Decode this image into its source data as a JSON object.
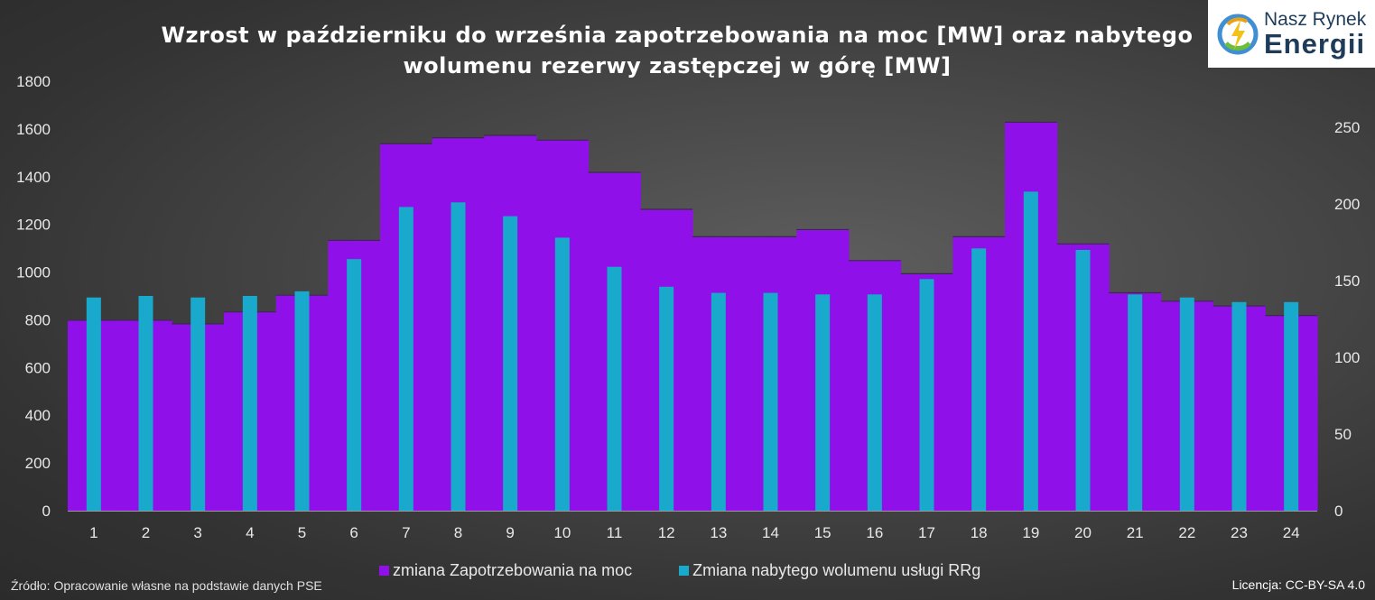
{
  "title_line1": "Wzrost w październiku do września zapotrzebowania na moc [MW] oraz nabytego",
  "title_line2": "wolumenu rezerwy zastępczej w górę [MW]",
  "logo": {
    "line1": "Nasz Rynek",
    "line2": "Energii"
  },
  "source": "Źródło: Opracowanie własne na podstawie danych PSE",
  "license": "Licencja: CC-BY-SA 4.0",
  "chart_data": {
    "type": "bar",
    "title": "Wzrost w październiku do września zapotrzebowania na moc [MW] oraz nabytego wolumenu rezerwy zastępczej w górę [MW]",
    "categories": [
      "1",
      "2",
      "3",
      "4",
      "5",
      "6",
      "7",
      "8",
      "9",
      "10",
      "11",
      "12",
      "13",
      "14",
      "15",
      "16",
      "17",
      "18",
      "19",
      "20",
      "21",
      "22",
      "23",
      "24"
    ],
    "y_left_ticks": [
      "0",
      "200",
      "400",
      "600",
      "800",
      "1000",
      "1200",
      "1400",
      "1600",
      "1800"
    ],
    "y_right_ticks": [
      "0",
      "50",
      "100",
      "150",
      "200",
      "250"
    ],
    "ylim_left": [
      0,
      1800
    ],
    "ylim_right": [
      0,
      280
    ],
    "legend_position": "bottom",
    "grid": false,
    "series": [
      {
        "name": "zmiana Zapotrzebowania na moc",
        "axis": "left",
        "color": "#8f10e8",
        "values": [
          800,
          800,
          785,
          835,
          905,
          1135,
          1540,
          1565,
          1575,
          1555,
          1420,
          1265,
          1150,
          1150,
          1180,
          1050,
          995,
          1150,
          1630,
          1120,
          915,
          880,
          860,
          820
        ]
      },
      {
        "name": "Zmiana nabytego wolumenu usługi RRg",
        "axis": "right",
        "color": "#18a9cc",
        "values": [
          139,
          140,
          139,
          140,
          143,
          164,
          198,
          201,
          192,
          178,
          159,
          146,
          142,
          142,
          141,
          141,
          151,
          171,
          208,
          170,
          141,
          139,
          136,
          136
        ]
      }
    ]
  }
}
